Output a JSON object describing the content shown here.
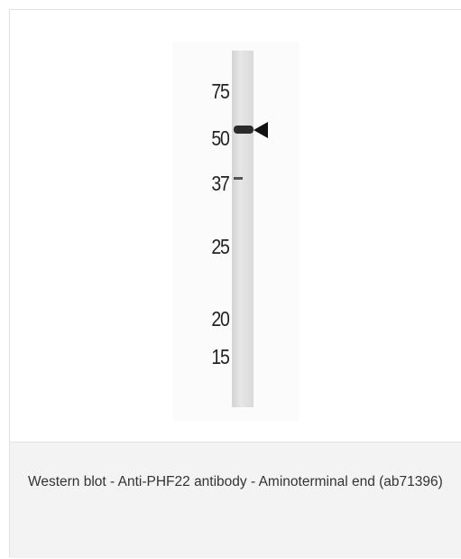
{
  "figure": {
    "markers": [
      75,
      50,
      37,
      25,
      20,
      15
    ],
    "caption": "Western blot - Anti-PHF22 antibody - Aminoterminal end (ab71396)"
  }
}
